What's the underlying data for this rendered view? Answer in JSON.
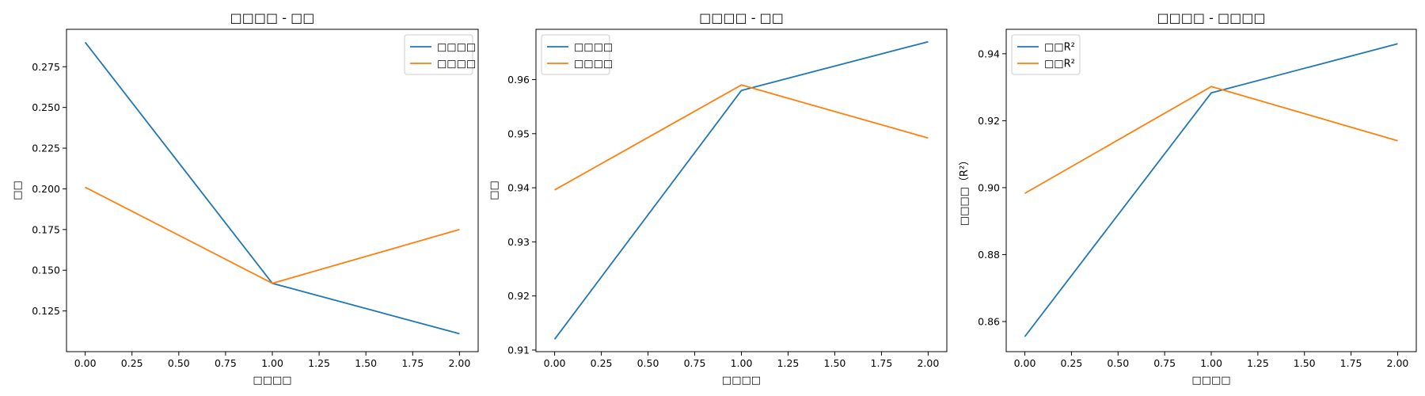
{
  "chart_data": [
    {
      "type": "line",
      "title": "□□□□ - □□",
      "xlabel": "□□□□",
      "ylabel": "□□",
      "xlim": [
        -0.1,
        2.1
      ],
      "ylim": [
        0.1,
        0.298
      ],
      "xticks": [
        0.0,
        0.25,
        0.5,
        0.75,
        1.0,
        1.25,
        1.5,
        1.75,
        2.0
      ],
      "xtick_labels": [
        "0.00",
        "0.25",
        "0.50",
        "0.75",
        "1.00",
        "1.25",
        "1.50",
        "1.75",
        "2.00"
      ],
      "yticks": [
        0.125,
        0.15,
        0.175,
        0.2,
        0.225,
        0.25,
        0.275
      ],
      "ytick_labels": [
        "0.125",
        "0.150",
        "0.175",
        "0.200",
        "0.225",
        "0.250",
        "0.275"
      ],
      "legend_position": "top-right",
      "x": [
        0,
        1,
        2
      ],
      "series": [
        {
          "name": "□□□□",
          "color": "#1f77b4",
          "values": [
            0.29,
            0.142,
            0.111
          ]
        },
        {
          "name": "□□□□",
          "color": "#ff7f0e",
          "values": [
            0.201,
            0.142,
            0.175
          ]
        }
      ]
    },
    {
      "type": "line",
      "title": "□□□□ - □□",
      "xlabel": "□□□□",
      "ylabel": "□□",
      "xlim": [
        -0.1,
        2.1
      ],
      "ylim": [
        0.9097,
        0.9693
      ],
      "xticks": [
        0.0,
        0.25,
        0.5,
        0.75,
        1.0,
        1.25,
        1.5,
        1.75,
        2.0
      ],
      "xtick_labels": [
        "0.00",
        "0.25",
        "0.50",
        "0.75",
        "1.00",
        "1.25",
        "1.50",
        "1.75",
        "2.00"
      ],
      "yticks": [
        0.91,
        0.92,
        0.93,
        0.94,
        0.95,
        0.96
      ],
      "ytick_labels": [
        "0.91",
        "0.92",
        "0.93",
        "0.94",
        "0.95",
        "0.96"
      ],
      "legend_position": "top-left",
      "x": [
        0,
        1,
        2
      ],
      "series": [
        {
          "name": "□□□□",
          "color": "#1f77b4",
          "values": [
            0.912,
            0.958,
            0.967
          ]
        },
        {
          "name": "□□□□",
          "color": "#ff7f0e",
          "values": [
            0.9396,
            0.959,
            0.9492
          ]
        }
      ]
    },
    {
      "type": "line",
      "title": "□□□□ - □□□□",
      "xlabel": "□□□□",
      "ylabel": "□□□□（R²）",
      "xlim": [
        -0.1,
        2.1
      ],
      "ylim": [
        0.851,
        0.9473
      ],
      "xticks": [
        0.0,
        0.25,
        0.5,
        0.75,
        1.0,
        1.25,
        1.5,
        1.75,
        2.0
      ],
      "xtick_labels": [
        "0.00",
        "0.25",
        "0.50",
        "0.75",
        "1.00",
        "1.25",
        "1.50",
        "1.75",
        "2.00"
      ],
      "yticks": [
        0.86,
        0.88,
        0.9,
        0.92,
        0.94
      ],
      "ytick_labels": [
        "0.86",
        "0.88",
        "0.90",
        "0.92",
        "0.94"
      ],
      "legend_position": "top-left",
      "x": [
        0,
        1,
        2
      ],
      "series": [
        {
          "name": "□□R²",
          "color": "#1f77b4",
          "values": [
            0.8555,
            0.9283,
            0.943
          ]
        },
        {
          "name": "□□R²",
          "color": "#ff7f0e",
          "values": [
            0.8983,
            0.9302,
            0.914
          ]
        }
      ]
    }
  ]
}
